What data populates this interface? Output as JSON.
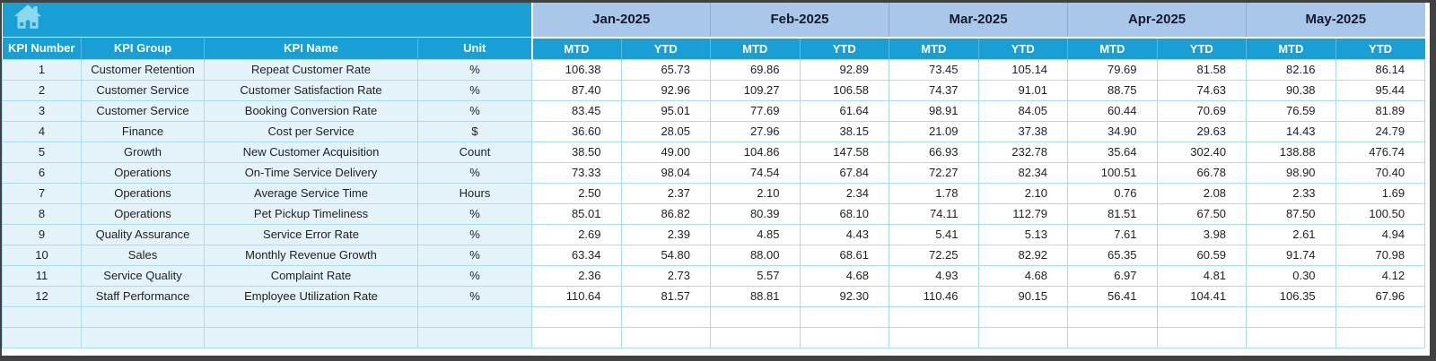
{
  "table": {
    "left_headers": [
      "KPI Number",
      "KPI Group",
      "KPI Name",
      "Unit"
    ],
    "months": [
      "Jan-2025",
      "Feb-2025",
      "Mar-2025",
      "Apr-2025",
      "May-2025"
    ],
    "sub_columns": {
      "mtd": "MTD",
      "ytd": "YTD"
    },
    "rows": [
      {
        "number": "1",
        "group": "Customer Retention",
        "name": "Repeat Customer Rate",
        "unit": "%",
        "values": [
          "106.38",
          "65.73",
          "69.86",
          "92.89",
          "73.45",
          "105.14",
          "79.69",
          "81.58",
          "82.16",
          "86.14"
        ]
      },
      {
        "number": "2",
        "group": "Customer Service",
        "name": "Customer Satisfaction Rate",
        "unit": "%",
        "values": [
          "87.40",
          "92.96",
          "109.27",
          "106.58",
          "74.37",
          "91.01",
          "88.75",
          "74.63",
          "90.38",
          "95.44"
        ]
      },
      {
        "number": "3",
        "group": "Customer Service",
        "name": "Booking Conversion Rate",
        "unit": "%",
        "values": [
          "83.45",
          "95.01",
          "77.69",
          "61.64",
          "98.91",
          "84.05",
          "60.44",
          "70.69",
          "76.59",
          "81.89"
        ]
      },
      {
        "number": "4",
        "group": "Finance",
        "name": "Cost per Service",
        "unit": "$",
        "values": [
          "36.60",
          "28.05",
          "27.96",
          "38.15",
          "21.09",
          "37.38",
          "34.90",
          "29.63",
          "14.43",
          "24.79"
        ]
      },
      {
        "number": "5",
        "group": "Growth",
        "name": "New Customer Acquisition",
        "unit": "Count",
        "values": [
          "38.50",
          "49.00",
          "104.86",
          "147.58",
          "66.93",
          "232.78",
          "35.64",
          "302.40",
          "138.88",
          "476.74"
        ]
      },
      {
        "number": "6",
        "group": "Operations",
        "name": "On-Time Service Delivery",
        "unit": "%",
        "values": [
          "73.33",
          "98.04",
          "74.54",
          "67.84",
          "72.27",
          "82.34",
          "100.51",
          "66.78",
          "98.90",
          "70.40"
        ]
      },
      {
        "number": "7",
        "group": "Operations",
        "name": "Average Service Time",
        "unit": "Hours",
        "values": [
          "2.50",
          "2.37",
          "2.10",
          "2.34",
          "1.78",
          "2.10",
          "0.76",
          "2.08",
          "2.33",
          "1.69"
        ]
      },
      {
        "number": "8",
        "group": "Operations",
        "name": "Pet Pickup Timeliness",
        "unit": "%",
        "values": [
          "85.01",
          "86.82",
          "80.39",
          "68.10",
          "74.11",
          "112.79",
          "81.51",
          "67.50",
          "87.50",
          "100.50"
        ]
      },
      {
        "number": "9",
        "group": "Quality Assurance",
        "name": "Service Error Rate",
        "unit": "%",
        "values": [
          "2.69",
          "2.39",
          "4.85",
          "4.43",
          "5.41",
          "5.13",
          "7.61",
          "3.98",
          "2.61",
          "4.94"
        ]
      },
      {
        "number": "10",
        "group": "Sales",
        "name": "Monthly Revenue Growth",
        "unit": "%",
        "values": [
          "63.34",
          "54.80",
          "88.00",
          "68.61",
          "72.25",
          "82.92",
          "65.35",
          "60.59",
          "91.74",
          "70.98"
        ]
      },
      {
        "number": "11",
        "group": "Service Quality",
        "name": "Complaint Rate",
        "unit": "%",
        "values": [
          "2.36",
          "2.73",
          "5.57",
          "4.68",
          "4.93",
          "4.68",
          "6.97",
          "4.81",
          "0.30",
          "4.12"
        ]
      },
      {
        "number": "12",
        "group": "Staff Performance",
        "name": "Employee Utilization Rate",
        "unit": "%",
        "values": [
          "110.64",
          "81.57",
          "88.81",
          "92.30",
          "110.46",
          "90.15",
          "56.41",
          "104.41",
          "106.35",
          "67.96"
        ]
      }
    ],
    "empty_row_count": 2
  },
  "icons": {
    "home": "home-icon"
  },
  "colors": {
    "header_cyan": "#1A9FD4",
    "month_band_blue": "#A9C7E8",
    "row_tint": "#E4F3FA",
    "grid_line": "#A6DEEF",
    "value_cell_bg": "#FFFFFF",
    "frame_dark": "#414141",
    "home_icon_fill": "#8BD8F1",
    "month_text": "#16162E"
  }
}
